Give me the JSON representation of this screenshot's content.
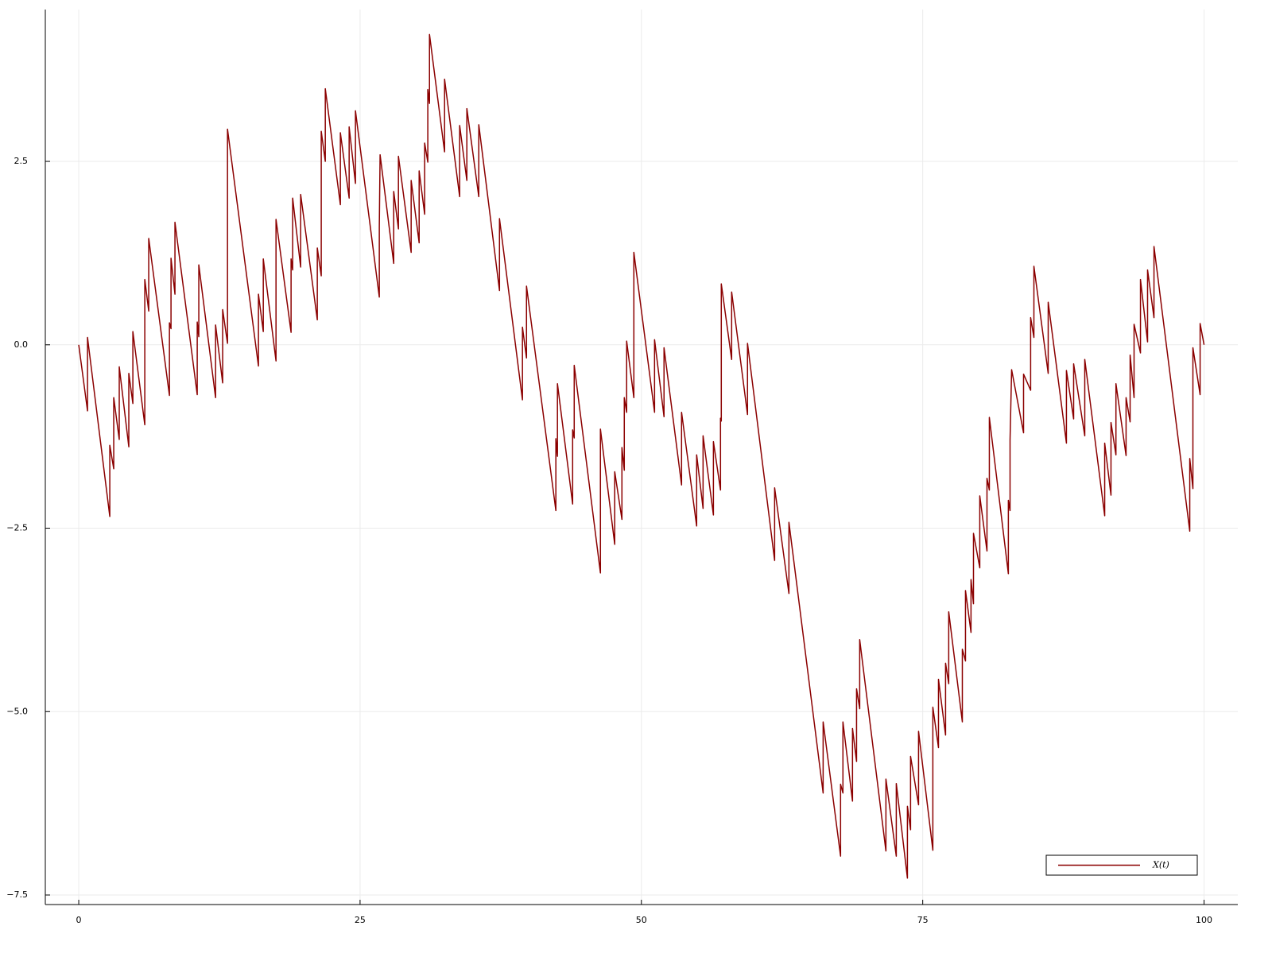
{
  "chart_data": {
    "type": "line",
    "x": [
      0,
      0.78,
      0.78,
      2.76,
      2.76,
      3.11,
      3.11,
      3.6,
      3.6,
      4.45,
      4.45,
      4.81,
      4.81,
      5.87,
      5.87,
      6.22,
      6.22,
      8.06,
      8.06,
      8.2,
      8.2,
      8.55,
      8.55,
      10.53,
      10.53,
      10.67,
      10.67,
      12.16,
      12.16,
      12.79,
      12.79,
      13.22,
      13.22,
      15.97,
      15.97,
      16.4,
      16.4,
      17.53,
      17.53,
      18.87,
      18.87,
      19.01,
      19.01,
      19.72,
      19.72,
      21.2,
      21.2,
      21.55,
      21.55,
      21.91,
      21.91,
      23.25,
      23.25,
      24.03,
      24.03,
      24.59,
      24.59,
      26.71,
      26.71,
      26.78,
      27.99,
      27.99,
      28.41,
      28.41,
      29.54,
      29.54,
      30.25,
      30.25,
      30.74,
      30.74,
      31.02,
      31.02,
      31.17,
      31.17,
      32.51,
      32.51,
      33.85,
      33.85,
      34.49,
      34.49,
      35.55,
      35.55,
      37.39,
      37.39,
      39.43,
      39.43,
      39.79,
      39.79,
      42.4,
      42.4,
      42.54,
      42.54,
      43.89,
      43.89,
      44.03,
      44.03,
      46.36,
      46.36,
      47.63,
      47.63,
      48.27,
      48.27,
      48.48,
      48.48,
      48.69,
      48.69,
      49.33,
      49.33,
      51.17,
      51.17,
      52.01,
      52.01,
      53.57,
      53.57,
      54.91,
      54.91,
      55.48,
      55.48,
      56.4,
      56.4,
      57.03,
      57.03,
      57.1,
      57.1,
      58.02,
      58.02,
      59.43,
      59.43,
      61.84,
      61.84,
      63.11,
      63.11,
      66.15,
      66.15,
      67.7,
      67.7,
      67.91,
      67.91,
      68.76,
      68.76,
      69.12,
      69.12,
      69.4,
      69.4,
      71.73,
      71.73,
      72.65,
      72.65,
      73.64,
      73.64,
      73.92,
      73.92,
      74.63,
      74.63,
      75.9,
      75.9,
      76.4,
      76.4,
      77.03,
      77.03,
      77.31,
      77.31,
      78.52,
      78.52,
      78.8,
      78.8,
      79.29,
      79.29,
      79.51,
      79.51,
      80.07,
      80.07,
      80.71,
      80.71,
      80.92,
      80.92,
      82.61,
      82.61,
      82.76,
      82.76,
      82.9,
      83.96,
      83.96,
      84.59,
      84.59,
      84.88,
      84.88,
      86.15,
      86.15,
      87.77,
      87.77,
      88.41,
      88.41,
      89.4,
      89.4,
      91.17,
      91.17,
      91.73,
      91.73,
      92.17,
      92.17,
      93.07,
      93.07,
      93.43,
      93.43,
      93.78,
      93.78,
      94.35,
      94.35,
      94.98,
      94.98,
      95.55,
      95.55,
      98.73,
      98.73,
      99.01,
      99.01,
      99.65,
      99.65,
      100
    ],
    "series": [
      {
        "name": "X(t)",
        "color": "#8b0000",
        "values": [
          0,
          -0.9,
          0.1,
          -2.34,
          -1.37,
          -1.69,
          -0.72,
          -1.29,
          -0.3,
          -1.39,
          -0.39,
          -0.8,
          0.18,
          -1.09,
          0.89,
          0.46,
          1.45,
          -0.69,
          0.3,
          0.22,
          1.18,
          0.69,
          1.67,
          -0.68,
          0.31,
          0.11,
          1.09,
          -0.72,
          0.27,
          -0.52,
          0.48,
          0.02,
          2.94,
          -0.29,
          0.69,
          0.18,
          1.17,
          -0.22,
          1.71,
          0.17,
          1.17,
          1.02,
          2.0,
          1.06,
          2.05,
          0.34,
          1.32,
          0.94,
          2.91,
          2.5,
          3.49,
          1.91,
          2.89,
          2.0,
          2.97,
          2.2,
          3.19,
          0.65,
          1.61,
          2.59,
          1.11,
          2.09,
          1.58,
          2.57,
          1.26,
          2.24,
          1.39,
          2.37,
          1.78,
          2.75,
          2.49,
          3.48,
          3.29,
          4.23,
          2.63,
          3.62,
          2.02,
          2.99,
          2.24,
          3.22,
          2.02,
          3.0,
          0.74,
          1.72,
          -0.75,
          0.24,
          -0.18,
          0.8,
          -2.26,
          -1.28,
          -1.52,
          -0.53,
          -2.17,
          -1.16,
          -1.27,
          -0.28,
          -3.11,
          -1.15,
          -2.72,
          -1.73,
          -2.38,
          -1.4,
          -1.71,
          -0.72,
          -0.92,
          0.05,
          -0.72,
          1.26,
          -0.92,
          0.07,
          -0.98,
          -0.04,
          -1.91,
          -0.92,
          -2.47,
          -1.5,
          -2.23,
          -1.24,
          -2.32,
          -1.32,
          -1.98,
          -1.0,
          -1.04,
          0.83,
          -0.2,
          0.72,
          -0.95,
          0.02,
          -2.94,
          -1.95,
          -3.39,
          -2.42,
          -6.11,
          -5.14,
          -6.97,
          -5.99,
          -6.11,
          -5.14,
          -6.22,
          -5.23,
          -5.68,
          -4.69,
          -4.96,
          -4.02,
          -6.9,
          -5.92,
          -6.97,
          -5.98,
          -7.27,
          -6.29,
          -6.61,
          -5.61,
          -6.27,
          -5.27,
          -6.89,
          -4.94,
          -5.49,
          -4.56,
          -5.32,
          -4.34,
          -4.62,
          -3.64,
          -5.14,
          -4.15,
          -4.31,
          -3.35,
          -3.92,
          -3.2,
          -3.53,
          -2.57,
          -3.04,
          -2.06,
          -2.81,
          -1.82,
          -1.98,
          -0.99,
          -3.12,
          -2.12,
          -2.26,
          -1.3,
          -0.34,
          -1.2,
          -0.4,
          -0.62,
          0.37,
          0.1,
          1.07,
          -0.39,
          0.58,
          -1.34,
          -0.35,
          -1.01,
          -0.26,
          -1.24,
          -0.2,
          -2.33,
          -1.34,
          -2.05,
          -1.06,
          -1.5,
          -0.53,
          -1.51,
          -0.72,
          -1.05,
          -0.14,
          -0.72,
          0.28,
          -0.11,
          0.89,
          0.04,
          1.02,
          0.37,
          1.34,
          -2.54,
          -1.55,
          -1.96,
          -0.04,
          -0.68,
          0.29,
          0
        ]
      }
    ],
    "xlim": [
      -2.97,
      103.0
    ],
    "ylim": [
      -7.63,
      4.57
    ],
    "xticks": [
      0,
      25,
      50,
      75,
      100
    ],
    "yticks": [
      {
        "value": -7.5,
        "label": "−7.5"
      },
      {
        "value": -5,
        "label": "−5.0"
      },
      {
        "value": -2.5,
        "label": "−2.5"
      },
      {
        "value": 0,
        "label": "0.0"
      },
      2.5
    ],
    "grid": true,
    "legend": "bottom right"
  }
}
